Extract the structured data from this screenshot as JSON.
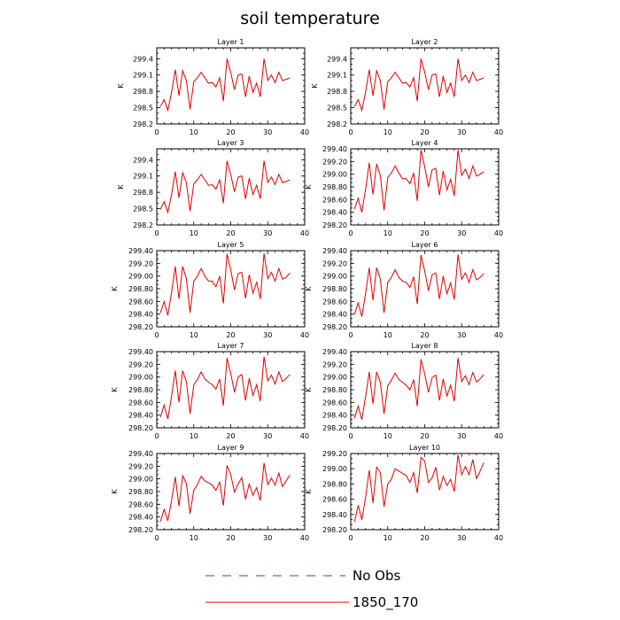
{
  "title": "soil temperature",
  "legend": {
    "items": [
      {
        "label": "No Obs",
        "color": "#3b3bd6",
        "style": "dashed"
      },
      {
        "label": "1850_170",
        "color": "#e00000",
        "style": "solid"
      }
    ]
  },
  "colors": {
    "series": "#e00000",
    "axis": "#000000"
  },
  "chart_data": [
    {
      "type": "line",
      "title": "Layer 1",
      "ylabel": "K",
      "xlim": [
        0,
        40
      ],
      "ylim": [
        298.2,
        299.6
      ],
      "xticks": [
        0,
        10,
        20,
        30,
        40
      ],
      "yticks": [
        298.2,
        298.5,
        298.8,
        299.1,
        299.4
      ],
      "ytick_labels": [
        "298.2",
        "298.5",
        "298.8",
        "299.1",
        "299.4"
      ],
      "series": [
        {
          "x": [
            1,
            2,
            3,
            4,
            5,
            6,
            7,
            8,
            9,
            10,
            11,
            12,
            13,
            14,
            15,
            16,
            17,
            18,
            19,
            20,
            21,
            22,
            23,
            24,
            25,
            26,
            27,
            28,
            29,
            30,
            31,
            32,
            33,
            34,
            35,
            36
          ],
          "y": [
            298.52,
            298.65,
            298.45,
            298.78,
            299.2,
            298.72,
            299.18,
            299.0,
            298.47,
            298.98,
            299.05,
            299.15,
            299.05,
            298.95,
            298.96,
            298.88,
            299.05,
            298.62,
            299.4,
            299.15,
            298.83,
            299.1,
            299.12,
            298.7,
            299.08,
            298.78,
            298.95,
            298.7,
            299.4,
            299.0,
            299.1,
            298.96,
            299.15,
            299.0,
            299.02,
            299.05
          ]
        }
      ]
    },
    {
      "type": "line",
      "title": "Layer 2",
      "ylabel": "K",
      "xlim": [
        0,
        40
      ],
      "ylim": [
        298.2,
        299.6
      ],
      "xticks": [
        0,
        10,
        20,
        30,
        40
      ],
      "yticks": [
        298.2,
        298.5,
        298.8,
        299.1,
        299.4
      ],
      "ytick_labels": [
        "298.2",
        "298.5",
        "298.8",
        "299.1",
        "299.4"
      ],
      "series": [
        {
          "x": [
            1,
            2,
            3,
            4,
            5,
            6,
            7,
            8,
            9,
            10,
            11,
            12,
            13,
            14,
            15,
            16,
            17,
            18,
            19,
            20,
            21,
            22,
            23,
            24,
            25,
            26,
            27,
            28,
            29,
            30,
            31,
            32,
            33,
            34,
            35,
            36
          ],
          "y": [
            298.52,
            298.65,
            298.45,
            298.78,
            299.2,
            298.72,
            299.18,
            299.0,
            298.47,
            298.98,
            299.05,
            299.15,
            299.05,
            298.95,
            298.96,
            298.88,
            299.05,
            298.62,
            299.4,
            299.15,
            298.83,
            299.1,
            299.12,
            298.7,
            299.08,
            298.78,
            298.95,
            298.7,
            299.4,
            299.0,
            299.1,
            298.96,
            299.15,
            299.0,
            299.02,
            299.05
          ]
        }
      ]
    },
    {
      "type": "line",
      "title": "Layer 3",
      "ylabel": "K",
      "xlim": [
        0,
        40
      ],
      "ylim": [
        298.2,
        299.6
      ],
      "xticks": [
        0,
        10,
        20,
        30,
        40
      ],
      "yticks": [
        298.2,
        298.5,
        298.8,
        299.1,
        299.4
      ],
      "ytick_labels": [
        "298.2",
        "298.5",
        "298.8",
        "299.1",
        "299.4"
      ],
      "series": [
        {
          "x": [
            1,
            2,
            3,
            4,
            5,
            6,
            7,
            8,
            9,
            10,
            11,
            12,
            13,
            14,
            15,
            16,
            17,
            18,
            19,
            20,
            21,
            22,
            23,
            24,
            25,
            26,
            27,
            28,
            29,
            30,
            31,
            32,
            33,
            34,
            35,
            36
          ],
          "y": [
            298.49,
            298.63,
            298.43,
            298.76,
            299.18,
            298.7,
            299.16,
            298.98,
            298.45,
            298.96,
            299.03,
            299.13,
            299.03,
            298.93,
            298.94,
            298.86,
            299.03,
            298.6,
            299.38,
            299.13,
            298.81,
            299.08,
            299.1,
            298.68,
            299.06,
            298.76,
            298.93,
            298.68,
            299.38,
            298.98,
            299.08,
            298.94,
            299.13,
            298.98,
            299.0,
            299.03
          ]
        }
      ]
    },
    {
      "type": "line",
      "title": "Layer 4",
      "ylabel": "K",
      "xlim": [
        0,
        40
      ],
      "ylim": [
        298.2,
        299.4
      ],
      "xticks": [
        0,
        10,
        20,
        30,
        40
      ],
      "yticks": [
        298.2,
        298.4,
        298.6,
        298.8,
        299.0,
        299.2,
        299.4
      ],
      "ytick_labels": [
        "298.20",
        "298.40",
        "298.60",
        "298.80",
        "299.00",
        "299.20",
        "299.40"
      ],
      "series": [
        {
          "x": [
            1,
            2,
            3,
            4,
            5,
            6,
            7,
            8,
            9,
            10,
            11,
            12,
            13,
            14,
            15,
            16,
            17,
            18,
            19,
            20,
            21,
            22,
            23,
            24,
            25,
            26,
            27,
            28,
            29,
            30,
            31,
            32,
            33,
            34,
            35,
            36
          ],
          "y": [
            298.45,
            298.62,
            298.4,
            298.76,
            299.18,
            298.68,
            299.16,
            298.98,
            298.43,
            298.95,
            299.02,
            299.13,
            299.02,
            298.93,
            298.93,
            298.85,
            299.02,
            298.58,
            299.38,
            299.12,
            298.8,
            299.07,
            299.09,
            298.67,
            299.05,
            298.75,
            298.92,
            298.66,
            299.38,
            298.98,
            299.08,
            298.93,
            299.13,
            298.97,
            299.0,
            299.04
          ]
        }
      ]
    },
    {
      "type": "line",
      "title": "Layer 5",
      "ylabel": "K",
      "xlim": [
        0,
        40
      ],
      "ylim": [
        298.2,
        299.4
      ],
      "xticks": [
        0,
        10,
        20,
        30,
        40
      ],
      "yticks": [
        298.2,
        298.4,
        298.6,
        298.8,
        299.0,
        299.2,
        299.4
      ],
      "ytick_labels": [
        "298.20",
        "298.40",
        "298.60",
        "298.80",
        "299.00",
        "299.20",
        "299.40"
      ],
      "series": [
        {
          "x": [
            1,
            2,
            3,
            4,
            5,
            6,
            7,
            8,
            9,
            10,
            11,
            12,
            13,
            14,
            15,
            16,
            17,
            18,
            19,
            20,
            21,
            22,
            23,
            24,
            25,
            26,
            27,
            28,
            29,
            30,
            31,
            32,
            33,
            34,
            35,
            36
          ],
          "y": [
            298.42,
            298.6,
            298.38,
            298.74,
            299.15,
            298.64,
            299.15,
            298.96,
            298.42,
            298.92,
            299.0,
            299.12,
            299.0,
            298.92,
            298.92,
            298.83,
            299.0,
            298.57,
            299.35,
            299.1,
            298.78,
            299.04,
            299.06,
            298.65,
            299.02,
            298.73,
            298.9,
            298.64,
            299.36,
            298.96,
            299.06,
            298.92,
            299.12,
            298.95,
            298.98,
            299.05
          ]
        }
      ]
    },
    {
      "type": "line",
      "title": "Layer 6",
      "ylabel": "K",
      "xlim": [
        0,
        40
      ],
      "ylim": [
        298.2,
        299.4
      ],
      "xticks": [
        0,
        10,
        20,
        30,
        40
      ],
      "yticks": [
        298.2,
        298.4,
        298.6,
        298.8,
        299.0,
        299.2,
        299.4
      ],
      "ytick_labels": [
        "298.20",
        "298.40",
        "298.60",
        "298.80",
        "299.00",
        "299.20",
        "299.40"
      ],
      "series": [
        {
          "x": [
            1,
            2,
            3,
            4,
            5,
            6,
            7,
            8,
            9,
            10,
            11,
            12,
            13,
            14,
            15,
            16,
            17,
            18,
            19,
            20,
            21,
            22,
            23,
            24,
            25,
            26,
            27,
            28,
            29,
            30,
            31,
            32,
            33,
            34,
            35,
            36
          ],
          "y": [
            298.4,
            298.58,
            298.36,
            298.72,
            299.13,
            298.62,
            299.13,
            298.95,
            298.42,
            298.9,
            298.98,
            299.1,
            298.98,
            298.92,
            298.9,
            298.82,
            298.99,
            298.56,
            299.33,
            299.08,
            298.77,
            299.02,
            299.05,
            298.64,
            299.0,
            298.72,
            298.89,
            298.63,
            299.34,
            298.95,
            299.05,
            298.9,
            299.1,
            298.94,
            298.98,
            299.04
          ]
        }
      ]
    },
    {
      "type": "line",
      "title": "Layer 7",
      "ylabel": "K",
      "xlim": [
        0,
        40
      ],
      "ylim": [
        298.2,
        299.4
      ],
      "xticks": [
        0,
        10,
        20,
        30,
        40
      ],
      "yticks": [
        298.2,
        298.4,
        298.6,
        298.8,
        299.0,
        299.2,
        299.4
      ],
      "ytick_labels": [
        "298.20",
        "298.40",
        "298.60",
        "298.80",
        "299.00",
        "299.20",
        "299.40"
      ],
      "series": [
        {
          "x": [
            1,
            2,
            3,
            4,
            5,
            6,
            7,
            8,
            9,
            10,
            11,
            12,
            13,
            14,
            15,
            16,
            17,
            18,
            19,
            20,
            21,
            22,
            23,
            24,
            25,
            26,
            27,
            28,
            29,
            30,
            31,
            32,
            33,
            34,
            35,
            36
          ],
          "y": [
            298.37,
            298.56,
            298.34,
            298.7,
            299.1,
            298.6,
            299.1,
            298.93,
            298.42,
            298.88,
            298.96,
            299.08,
            298.97,
            298.92,
            298.88,
            298.81,
            298.97,
            298.55,
            299.3,
            299.06,
            298.76,
            299.0,
            299.04,
            298.63,
            298.98,
            298.71,
            298.88,
            298.62,
            299.32,
            298.94,
            299.03,
            298.89,
            299.08,
            298.93,
            298.98,
            299.04
          ]
        }
      ]
    },
    {
      "type": "line",
      "title": "Layer 8",
      "ylabel": "K",
      "xlim": [
        0,
        40
      ],
      "ylim": [
        298.2,
        299.4
      ],
      "xticks": [
        0,
        10,
        20,
        30,
        40
      ],
      "yticks": [
        298.2,
        298.4,
        298.6,
        298.8,
        299.0,
        299.2,
        299.4
      ],
      "ytick_labels": [
        "298.20",
        "298.40",
        "298.60",
        "298.80",
        "299.00",
        "299.20",
        "299.40"
      ],
      "series": [
        {
          "x": [
            1,
            2,
            3,
            4,
            5,
            6,
            7,
            8,
            9,
            10,
            11,
            12,
            13,
            14,
            15,
            16,
            17,
            18,
            19,
            20,
            21,
            22,
            23,
            24,
            25,
            26,
            27,
            28,
            29,
            30,
            31,
            32,
            33,
            34,
            35,
            36
          ],
          "y": [
            298.35,
            298.54,
            298.33,
            298.68,
            299.08,
            298.58,
            299.08,
            298.92,
            298.42,
            298.86,
            298.95,
            299.06,
            298.96,
            298.92,
            298.87,
            298.8,
            298.96,
            298.54,
            299.28,
            299.05,
            298.76,
            298.99,
            299.03,
            298.63,
            298.97,
            298.7,
            298.87,
            298.62,
            299.3,
            298.93,
            299.02,
            298.88,
            299.07,
            298.92,
            298.97,
            299.04
          ]
        }
      ]
    },
    {
      "type": "line",
      "title": "Layer 9",
      "ylabel": "K",
      "xlim": [
        0,
        40
      ],
      "ylim": [
        298.2,
        299.4
      ],
      "xticks": [
        0,
        10,
        20,
        30,
        40
      ],
      "yticks": [
        298.2,
        298.4,
        298.6,
        298.8,
        299.0,
        299.2,
        299.4
      ],
      "ytick_labels": [
        "298.20",
        "298.40",
        "298.60",
        "298.80",
        "299.00",
        "299.20",
        "299.40"
      ],
      "series": [
        {
          "x": [
            1,
            2,
            3,
            4,
            5,
            6,
            7,
            8,
            9,
            10,
            11,
            12,
            13,
            14,
            15,
            16,
            17,
            18,
            19,
            20,
            21,
            22,
            23,
            24,
            25,
            26,
            27,
            28,
            29,
            30,
            31,
            32,
            33,
            34,
            35,
            36
          ],
          "y": [
            298.33,
            298.52,
            298.34,
            298.66,
            299.03,
            298.57,
            299.05,
            298.93,
            298.45,
            298.82,
            298.91,
            299.04,
            298.97,
            298.94,
            298.9,
            298.82,
            298.95,
            298.58,
            299.21,
            299.07,
            298.79,
            298.92,
            299.02,
            298.68,
            298.92,
            298.74,
            298.86,
            298.66,
            299.25,
            298.91,
            299.01,
            298.9,
            299.09,
            298.88,
            298.97,
            299.06
          ]
        }
      ]
    },
    {
      "type": "line",
      "title": "Layer 10",
      "ylabel": "K",
      "xlim": [
        0,
        40
      ],
      "ylim": [
        298.2,
        299.2
      ],
      "xticks": [
        0,
        10,
        20,
        30,
        40
      ],
      "yticks": [
        298.2,
        298.4,
        298.6,
        298.8,
        299.0,
        299.2
      ],
      "ytick_labels": [
        "298.20",
        "298.40",
        "298.60",
        "298.80",
        "299.00",
        "299.20"
      ],
      "series": [
        {
          "x": [
            1,
            2,
            3,
            4,
            5,
            6,
            7,
            8,
            9,
            10,
            11,
            12,
            13,
            14,
            15,
            16,
            17,
            18,
            19,
            20,
            21,
            22,
            23,
            24,
            25,
            26,
            27,
            28,
            29,
            30,
            31,
            32,
            33,
            34,
            35,
            36
          ],
          "y": [
            298.3,
            298.52,
            298.33,
            298.62,
            298.98,
            298.55,
            299.02,
            298.95,
            298.5,
            298.8,
            298.86,
            299.0,
            298.97,
            298.94,
            298.91,
            298.82,
            298.95,
            298.68,
            299.15,
            299.1,
            298.82,
            298.88,
            299.02,
            298.72,
            298.9,
            298.78,
            298.86,
            298.7,
            299.18,
            298.92,
            299.03,
            298.92,
            299.12,
            298.87,
            298.97,
            299.08
          ]
        }
      ]
    }
  ]
}
